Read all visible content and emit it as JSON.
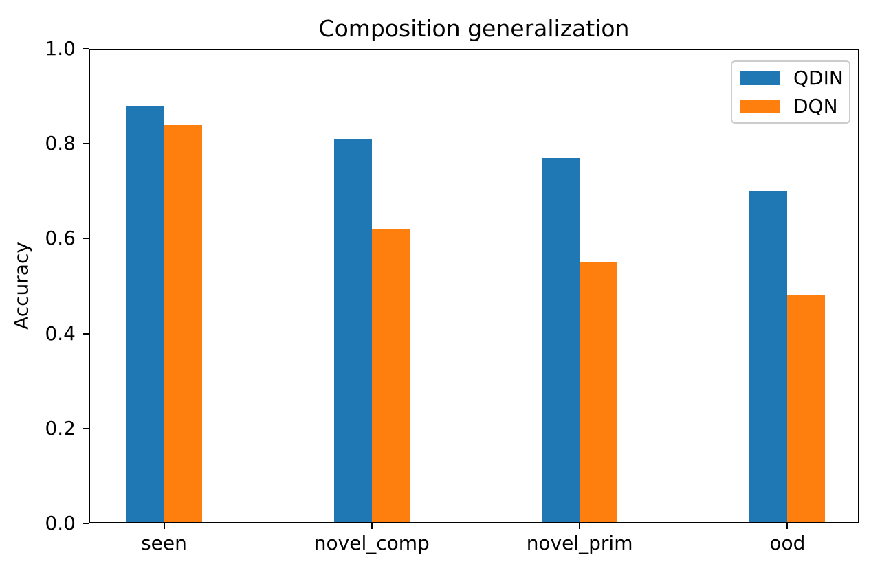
{
  "chart_data": {
    "type": "bar",
    "title": "Composition generalization",
    "ylabel": "Accuracy",
    "xlabel": "",
    "categories": [
      "seen",
      "novel_comp",
      "novel_prim",
      "ood"
    ],
    "series": [
      {
        "name": "QDIN",
        "color": "#1f77b4",
        "values": [
          0.88,
          0.81,
          0.77,
          0.7
        ]
      },
      {
        "name": "DQN",
        "color": "#ff7f0e",
        "values": [
          0.84,
          0.62,
          0.55,
          0.48
        ]
      }
    ],
    "ylim": [
      0.0,
      1.0
    ],
    "yticks": [
      "0.0",
      "0.2",
      "0.4",
      "0.6",
      "0.8",
      "1.0"
    ],
    "grid": false,
    "legend_position": "upper right"
  }
}
